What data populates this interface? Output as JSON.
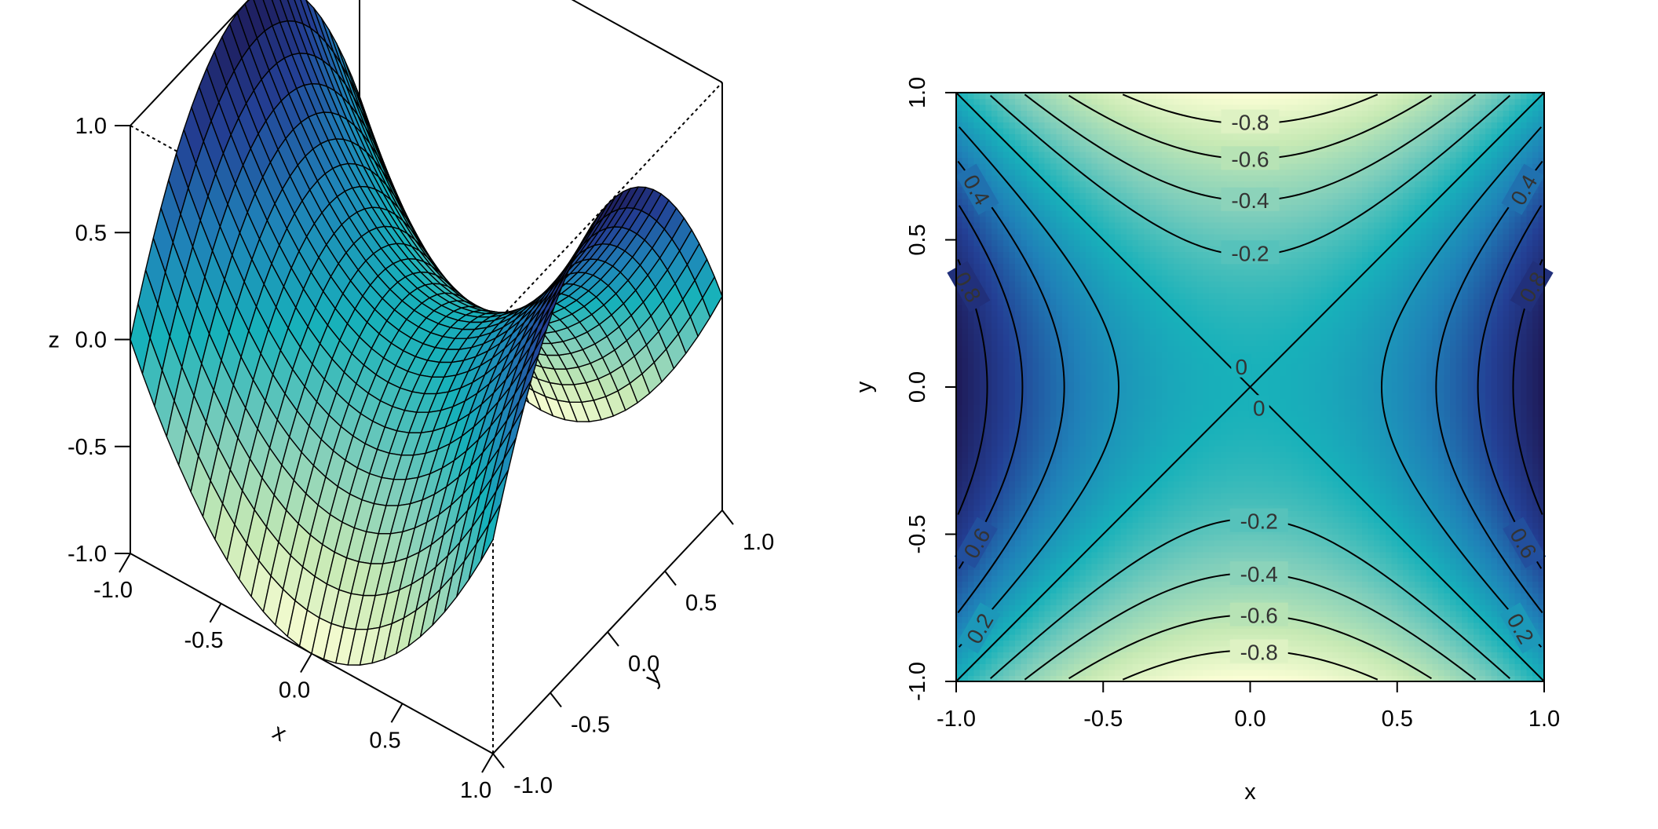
{
  "chart_data": [
    {
      "type": "surface",
      "function": "z = x^2 - y^2",
      "xlabel": "x",
      "ylabel": "y",
      "zlabel": "z",
      "xlim": [
        -1,
        1
      ],
      "ylim": [
        -1,
        1
      ],
      "zlim": [
        -1,
        1
      ],
      "x_ticks": [
        "-1.0",
        "-0.5",
        "0.0",
        "0.5",
        "1.0"
      ],
      "y_ticks": [
        "-1.0",
        "-0.5",
        "0.0",
        "0.5",
        "1.0"
      ],
      "z_ticks": [
        "-1.0",
        "-0.5",
        "0.0",
        "0.5",
        "1.0"
      ],
      "grid_lines_per_axis": 30,
      "colormap": [
        "#fdffd6",
        "#c6e9b4",
        "#7ccdbb",
        "#18b1ba",
        "#1f81b8",
        "#233f94",
        "#1e1a57"
      ]
    },
    {
      "type": "heatmap",
      "function": "z = x^2 - y^2",
      "xlabel": "x",
      "ylabel": "y",
      "xlim": [
        -1,
        1
      ],
      "ylim": [
        -1,
        1
      ],
      "x_ticks": [
        "-1.0",
        "-0.5",
        "0.0",
        "0.5",
        "1.0"
      ],
      "y_ticks": [
        "-1.0",
        "-0.5",
        "0.0",
        "0.5",
        "1.0"
      ],
      "contour_levels": [
        -0.8,
        -0.6,
        -0.4,
        -0.2,
        0,
        0.2,
        0.4,
        0.6,
        0.8
      ],
      "contour_labels": [
        {
          "text": "-0.8",
          "x": 0.0,
          "y": 0.9
        },
        {
          "text": "-0.6",
          "x": 0.0,
          "y": 0.775
        },
        {
          "text": "-0.4",
          "x": 0.0,
          "y": 0.635
        },
        {
          "text": "-0.2",
          "x": 0.0,
          "y": 0.455
        },
        {
          "text": "0",
          "x": -0.03,
          "y": 0.07
        },
        {
          "text": "0",
          "x": 0.03,
          "y": -0.07
        },
        {
          "text": "-0.2",
          "x": 0.03,
          "y": -0.455
        },
        {
          "text": "-0.4",
          "x": 0.03,
          "y": -0.635
        },
        {
          "text": "-0.6",
          "x": 0.03,
          "y": -0.775
        },
        {
          "text": "-0.8",
          "x": 0.03,
          "y": -0.9
        },
        {
          "text": "0.4",
          "x": -0.93,
          "y": 0.67
        },
        {
          "text": "0.8",
          "x": -0.96,
          "y": 0.34
        },
        {
          "text": "0.6",
          "x": -0.93,
          "y": -0.53
        },
        {
          "text": "0.2",
          "x": -0.92,
          "y": -0.82
        },
        {
          "text": "0.4",
          "x": 0.93,
          "y": 0.67
        },
        {
          "text": "0.8",
          "x": 0.96,
          "y": 0.34
        },
        {
          "text": "0.6",
          "x": 0.93,
          "y": -0.53
        },
        {
          "text": "0.2",
          "x": 0.92,
          "y": -0.82
        }
      ],
      "colormap": [
        "#fdffd6",
        "#c6e9b4",
        "#7ccdbb",
        "#18b1ba",
        "#1f81b8",
        "#233f94",
        "#1e1a57"
      ]
    }
  ]
}
